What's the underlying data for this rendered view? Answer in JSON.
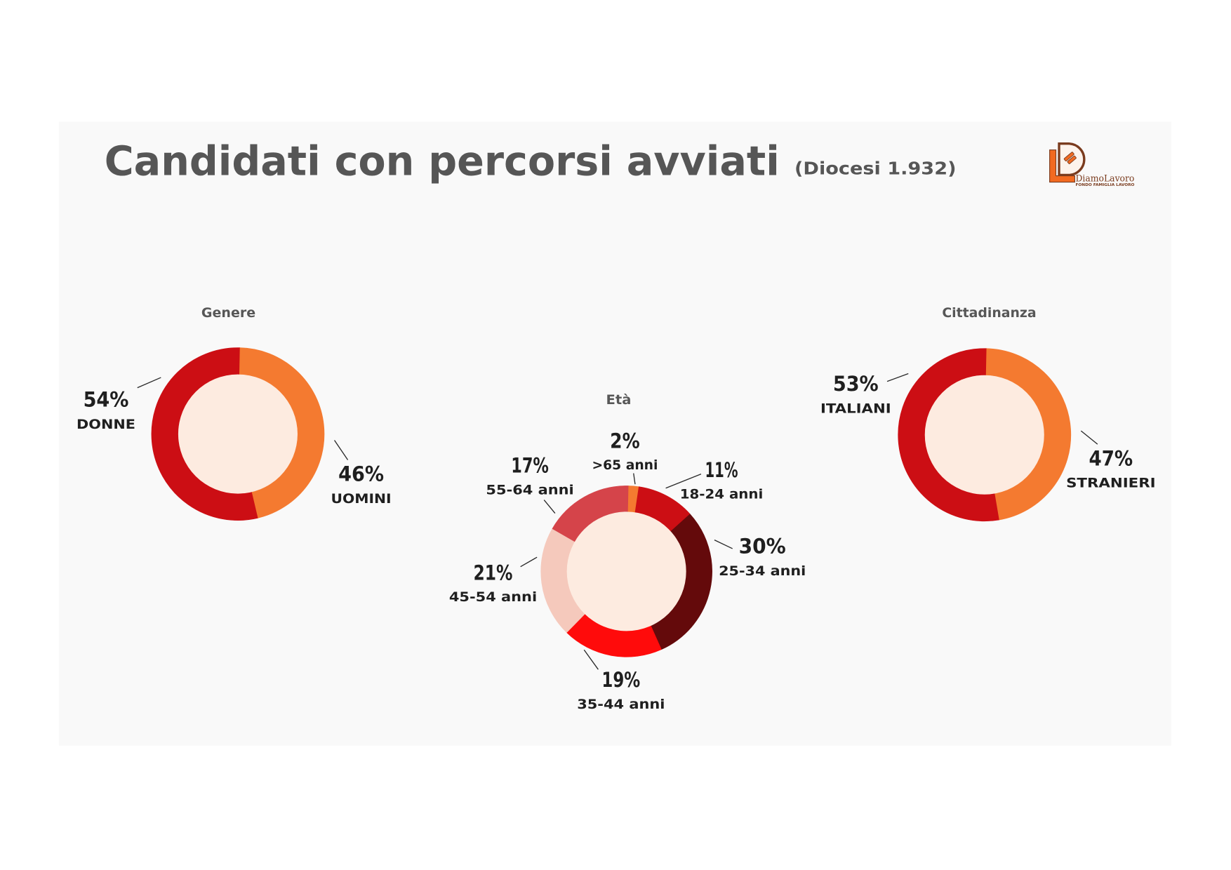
{
  "title": "Candidati con percorsi avviati",
  "subtitle": "(Diocesi 1.932)",
  "logo": {
    "icon": "diamolavoro-logo",
    "wordmark": "DiamoLavoro",
    "tagline": "FONDO FAMIGLIA LAVORO"
  },
  "colors": {
    "title": "#565656",
    "panel_background": "#F9F9F9",
    "donut_hole": "#FDEBE0",
    "orange": "#F47A30",
    "red": "#CC0E14"
  },
  "chart_data": [
    {
      "type": "pie",
      "donut": true,
      "title": "Genere",
      "categories": [
        "UOMINI",
        "DONNE"
      ],
      "values": [
        46,
        54
      ],
      "value_labels": [
        "46%",
        "54%"
      ],
      "colors": [
        "#F47A30",
        "#CC0E14"
      ]
    },
    {
      "type": "pie",
      "donut": true,
      "title": "Età",
      "categories": [
        ">65 anni",
        "18-24 anni",
        "25-34 anni",
        "35-44 anni",
        "45-54 anni",
        "55-64 anni"
      ],
      "values": [
        2,
        11,
        30,
        19,
        21,
        17
      ],
      "value_labels": [
        "2%",
        "11%",
        "30%",
        "19%",
        "21%",
        "17%"
      ],
      "colors": [
        "#F47A30",
        "#CC0E14",
        "#640A0B",
        "#FF0B0B",
        "#F5C9BC",
        "#D5444A"
      ]
    },
    {
      "type": "pie",
      "donut": true,
      "title": "Cittadinanza",
      "categories": [
        "STRANIERI",
        "ITALIANI"
      ],
      "values": [
        47,
        53
      ],
      "value_labels": [
        "47%",
        "53%"
      ],
      "colors": [
        "#F47A30",
        "#CC0E14"
      ]
    }
  ]
}
